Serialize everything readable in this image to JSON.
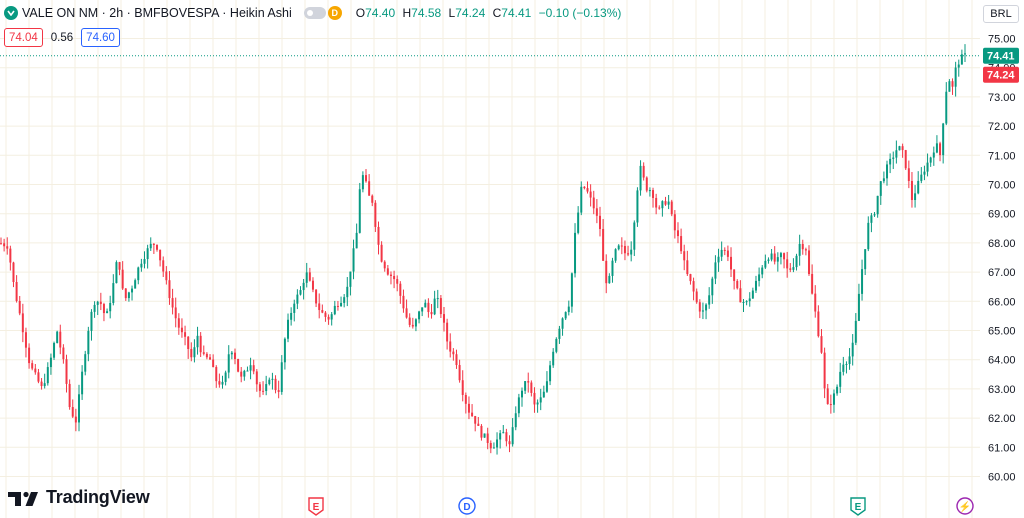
{
  "header": {
    "symbol_title": "VALE ON NM · 2h · BMFBOVESPA · Heikin Ashi",
    "badge_letter": "D",
    "ohlc": [
      {
        "label": "O",
        "value": "74.40"
      },
      {
        "label": "H",
        "value": "74.58"
      },
      {
        "label": "L",
        "value": "74.24"
      },
      {
        "label": "C",
        "value": "74.41"
      },
      {
        "label": "",
        "value": "−0.10 (−0.13%)"
      }
    ],
    "bid": "74.04",
    "spread": "0.56",
    "ask": "74.60",
    "currency": "BRL"
  },
  "logo_text": "TradingView",
  "colors": {
    "up": "#089981",
    "down": "#f23645",
    "ask": "#2962ff",
    "grid": "#f4efe1",
    "text": "#131722"
  },
  "markers": [
    {
      "letter": "E",
      "type": "earnings-down",
      "color": "#f23645"
    },
    {
      "letter": "D",
      "type": "dividend",
      "color": "#2962ff"
    },
    {
      "letter": "E",
      "type": "earnings-up",
      "color": "#089981"
    },
    {
      "letter": "⚡",
      "type": "split",
      "color": "#9c27b0"
    }
  ],
  "chart_data": {
    "type": "candlestick-heikin-ashi",
    "ylim": [
      60.0,
      75.0
    ],
    "y_ticks": [
      "60.00",
      "61.00",
      "62.00",
      "63.00",
      "64.00",
      "65.00",
      "66.00",
      "67.00",
      "68.00",
      "69.00",
      "70.00",
      "71.00",
      "72.00",
      "73.00",
      "74.00",
      "75.00"
    ],
    "last_price_label": "74.41",
    "low_label": "74.24",
    "last_price": 74.41,
    "low_price": 74.24,
    "bar_count": 310,
    "path_keypoints": [
      [
        0,
        68.0
      ],
      [
        8,
        67.9
      ],
      [
        14,
        66.5
      ],
      [
        22,
        65.2
      ],
      [
        30,
        63.8
      ],
      [
        42,
        63.0
      ],
      [
        50,
        63.9
      ],
      [
        57,
        65.0
      ],
      [
        64,
        63.8
      ],
      [
        70,
        62.3
      ],
      [
        76,
        61.9
      ],
      [
        82,
        63.5
      ],
      [
        88,
        65.0
      ],
      [
        94,
        66.0
      ],
      [
        100,
        66.0
      ],
      [
        106,
        65.4
      ],
      [
        112,
        66.3
      ],
      [
        118,
        67.6
      ],
      [
        124,
        66.0
      ],
      [
        132,
        66.5
      ],
      [
        140,
        67.3
      ],
      [
        150,
        67.9
      ],
      [
        156,
        68.0
      ],
      [
        162,
        67.2
      ],
      [
        168,
        66.4
      ],
      [
        174,
        65.6
      ],
      [
        180,
        65.0
      ],
      [
        186,
        64.6
      ],
      [
        192,
        64.0
      ],
      [
        198,
        64.9
      ],
      [
        202,
        64.1
      ],
      [
        210,
        64.0
      ],
      [
        216,
        63.3
      ],
      [
        224,
        63.1
      ],
      [
        230,
        64.5
      ],
      [
        236,
        64.0
      ],
      [
        240,
        63.3
      ],
      [
        246,
        63.6
      ],
      [
        252,
        64.0
      ],
      [
        258,
        63.0
      ],
      [
        264,
        62.8
      ],
      [
        270,
        63.5
      ],
      [
        278,
        62.8
      ],
      [
        286,
        65.0
      ],
      [
        294,
        66.0
      ],
      [
        300,
        66.3
      ],
      [
        306,
        67.0
      ],
      [
        312,
        66.4
      ],
      [
        318,
        65.8
      ],
      [
        324,
        65.5
      ],
      [
        330,
        65.4
      ],
      [
        336,
        65.9
      ],
      [
        342,
        66.1
      ],
      [
        348,
        66.5
      ],
      [
        352,
        67.5
      ],
      [
        356,
        68.0
      ],
      [
        360,
        70.0
      ],
      [
        364,
        70.4
      ],
      [
        368,
        69.6
      ],
      [
        372,
        69.5
      ],
      [
        378,
        68.0
      ],
      [
        382,
        67.4
      ],
      [
        388,
        67.0
      ],
      [
        396,
        66.7
      ],
      [
        402,
        66.0
      ],
      [
        406,
        65.5
      ],
      [
        412,
        65.0
      ],
      [
        418,
        65.5
      ],
      [
        424,
        66.0
      ],
      [
        430,
        65.5
      ],
      [
        436,
        66.2
      ],
      [
        442,
        65.5
      ],
      [
        448,
        64.5
      ],
      [
        456,
        64.0
      ],
      [
        462,
        63.0
      ],
      [
        468,
        62.3
      ],
      [
        474,
        62.0
      ],
      [
        480,
        61.5
      ],
      [
        486,
        61.3
      ],
      [
        492,
        61.0
      ],
      [
        498,
        61.3
      ],
      [
        504,
        61.5
      ],
      [
        510,
        61.0
      ],
      [
        516,
        62.3
      ],
      [
        522,
        63.0
      ],
      [
        528,
        63.3
      ],
      [
        534,
        62.4
      ],
      [
        540,
        62.6
      ],
      [
        546,
        63.0
      ],
      [
        552,
        64.2
      ],
      [
        558,
        65.0
      ],
      [
        564,
        65.6
      ],
      [
        570,
        66.0
      ],
      [
        574,
        68.0
      ],
      [
        578,
        69.0
      ],
      [
        582,
        70.0
      ],
      [
        588,
        69.7
      ],
      [
        594,
        69.2
      ],
      [
        600,
        68.5
      ],
      [
        604,
        67.0
      ],
      [
        608,
        66.5
      ],
      [
        614,
        67.6
      ],
      [
        620,
        67.9
      ],
      [
        626,
        67.6
      ],
      [
        632,
        67.9
      ],
      [
        636,
        69.5
      ],
      [
        640,
        70.6
      ],
      [
        646,
        69.9
      ],
      [
        652,
        69.8
      ],
      [
        658,
        69.0
      ],
      [
        662,
        69.3
      ],
      [
        668,
        69.5
      ],
      [
        674,
        68.5
      ],
      [
        680,
        68.0
      ],
      [
        686,
        67.0
      ],
      [
        692,
        66.5
      ],
      [
        698,
        65.8
      ],
      [
        704,
        65.6
      ],
      [
        710,
        66.3
      ],
      [
        716,
        67.5
      ],
      [
        722,
        67.8
      ],
      [
        728,
        67.6
      ],
      [
        734,
        66.6
      ],
      [
        740,
        66.1
      ],
      [
        746,
        65.9
      ],
      [
        752,
        66.3
      ],
      [
        758,
        66.8
      ],
      [
        764,
        67.4
      ],
      [
        770,
        67.6
      ],
      [
        776,
        67.3
      ],
      [
        782,
        67.6
      ],
      [
        788,
        67.0
      ],
      [
        794,
        67.3
      ],
      [
        800,
        68.0
      ],
      [
        806,
        67.8
      ],
      [
        810,
        66.6
      ],
      [
        814,
        65.9
      ],
      [
        818,
        65.0
      ],
      [
        822,
        64.2
      ],
      [
        826,
        62.3
      ],
      [
        830,
        62.5
      ],
      [
        836,
        62.9
      ],
      [
        842,
        63.9
      ],
      [
        848,
        64.0
      ],
      [
        852,
        64.3
      ],
      [
        856,
        65.3
      ],
      [
        860,
        66.6
      ],
      [
        864,
        67.6
      ],
      [
        868,
        68.6
      ],
      [
        874,
        69.0
      ],
      [
        880,
        70.0
      ],
      [
        886,
        70.5
      ],
      [
        892,
        70.9
      ],
      [
        898,
        71.3
      ],
      [
        904,
        71.0
      ],
      [
        908,
        70.2
      ],
      [
        912,
        69.5
      ],
      [
        918,
        70.0
      ],
      [
        924,
        70.5
      ],
      [
        930,
        70.9
      ],
      [
        936,
        71.4
      ],
      [
        940,
        71.0
      ],
      [
        944,
        72.5
      ],
      [
        948,
        73.8
      ],
      [
        952,
        73.2
      ],
      [
        956,
        74.0
      ],
      [
        960,
        74.3
      ],
      [
        965,
        74.4
      ]
    ]
  }
}
